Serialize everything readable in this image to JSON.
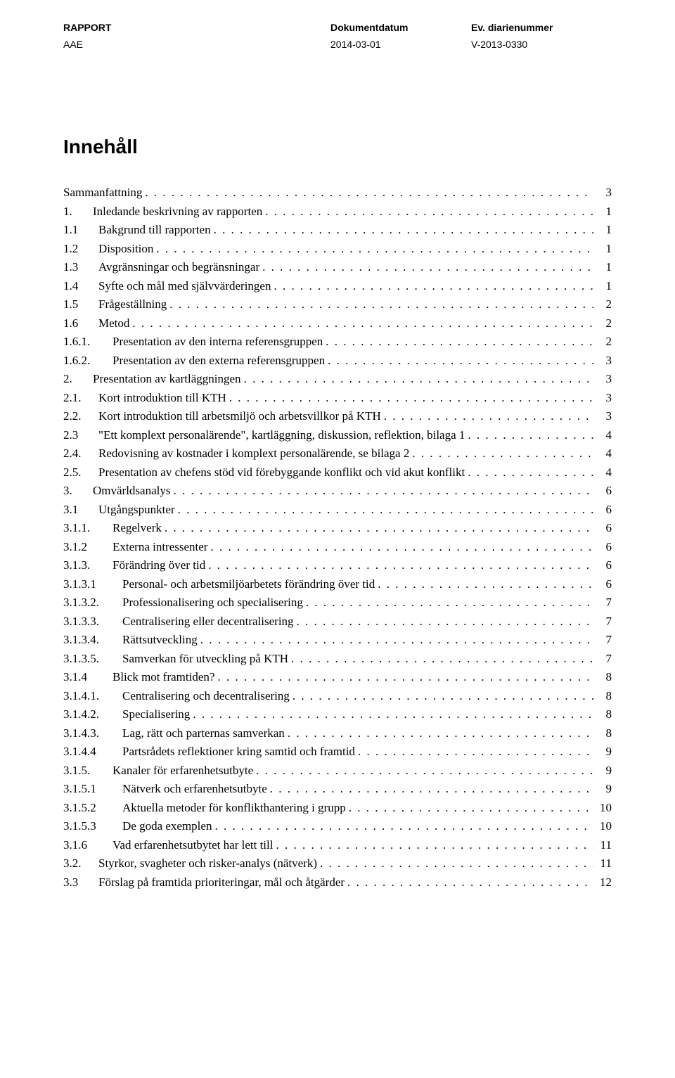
{
  "header": {
    "row1": {
      "col1": "RAPPORT",
      "col2": "Dokumentdatum",
      "col3": "Ev. diarienummer"
    },
    "row2": {
      "col1": "AAE",
      "col2": "2014-03-01",
      "col3": "V-2013-0330"
    }
  },
  "title": "Innehåll",
  "toc": [
    {
      "level": 0,
      "num": "",
      "label": "Sammanfattning",
      "page": "3"
    },
    {
      "level": 0,
      "num": "1.",
      "label": "Inledande beskrivning av rapporten",
      "page": "1"
    },
    {
      "level": 1,
      "num": "1.1",
      "label": "Bakgrund till rapporten",
      "page": "1"
    },
    {
      "level": 1,
      "num": "1.2",
      "label": "Disposition",
      "page": "1"
    },
    {
      "level": 1,
      "num": "1.3",
      "label": "Avgränsningar och begränsningar",
      "page": "1"
    },
    {
      "level": 1,
      "num": "1.4",
      "label": "Syfte och mål med självvärderingen",
      "page": "1"
    },
    {
      "level": 1,
      "num": "1.5",
      "label": "Frågeställning",
      "page": "2"
    },
    {
      "level": 1,
      "num": "1.6",
      "label": "Metod",
      "page": "2"
    },
    {
      "level": 2,
      "num": "1.6.1.",
      "label": "Presentation av den interna referensgruppen",
      "page": "2"
    },
    {
      "level": 2,
      "num": "1.6.2.",
      "label": "Presentation av den externa referensgruppen",
      "page": "3"
    },
    {
      "level": 0,
      "num": "2.",
      "label": "Presentation av kartläggningen",
      "page": "3"
    },
    {
      "level": 1,
      "num": "2.1.",
      "label": "Kort introduktion till KTH",
      "page": "3"
    },
    {
      "level": 1,
      "num": "2.2.",
      "label": "Kort introduktion till arbetsmiljö och arbetsvillkor på KTH",
      "page": "3"
    },
    {
      "level": 1,
      "num": "2.3",
      "label": "\"Ett komplext personalärende\", kartläggning, diskussion, reflektion, bilaga 1",
      "page": "4"
    },
    {
      "level": 1,
      "num": "2.4.",
      "label": "Redovisning av kostnader i komplext personalärende, se bilaga 2",
      "page": "4"
    },
    {
      "level": 1,
      "num": "2.5.",
      "label": "Presentation av chefens stöd vid förebyggande konflikt och vid akut konflikt",
      "page": "4"
    },
    {
      "level": 0,
      "num": "3.",
      "label": "Omvärldsanalys",
      "page": "6"
    },
    {
      "level": 1,
      "num": "3.1",
      "label": "Utgångspunkter",
      "page": "6"
    },
    {
      "level": 2,
      "num": "3.1.1.",
      "label": "Regelverk",
      "page": "6"
    },
    {
      "level": 2,
      "num": "3.1.2",
      "label": "Externa intressenter",
      "page": "6"
    },
    {
      "level": 2,
      "num": "3.1.3.",
      "label": "Förändring över tid",
      "page": "6"
    },
    {
      "level": 3,
      "num": "3.1.3.1",
      "label": "Personal- och arbetsmiljöarbetets förändring över tid",
      "page": "6"
    },
    {
      "level": 3,
      "num": "3.1.3.2.",
      "label": "Professionalisering och specialisering",
      "page": "7"
    },
    {
      "level": 3,
      "num": "3.1.3.3.",
      "label": "Centralisering eller decentralisering",
      "page": "7"
    },
    {
      "level": 3,
      "num": "3.1.3.4.",
      "label": "Rättsutveckling",
      "page": "7"
    },
    {
      "level": 3,
      "num": "3.1.3.5.",
      "label": "Samverkan för utveckling på KTH",
      "page": "7"
    },
    {
      "level": 2,
      "num": "3.1.4",
      "label": "Blick mot framtiden?",
      "page": "8"
    },
    {
      "level": 3,
      "num": "3.1.4.1.",
      "label": "Centralisering och decentralisering",
      "page": "8"
    },
    {
      "level": 3,
      "num": "3.1.4.2.",
      "label": "Specialisering",
      "page": "8"
    },
    {
      "level": 3,
      "num": "3.1.4.3.",
      "label": "Lag, rätt och parternas samverkan",
      "page": "8"
    },
    {
      "level": 3,
      "num": "3.1.4.4",
      "label": "Partsrådets reflektioner kring samtid och framtid",
      "page": "9"
    },
    {
      "level": 2,
      "num": "3.1.5.",
      "label": "Kanaler för erfarenhetsutbyte",
      "page": "9"
    },
    {
      "level": 3,
      "num": "3.1.5.1",
      "label": "Nätverk och erfarenhetsutbyte",
      "page": "9"
    },
    {
      "level": 3,
      "num": "3.1.5.2",
      "label": "Aktuella metoder för konflikthantering i grupp",
      "page": "10"
    },
    {
      "level": 3,
      "num": "3.1.5.3",
      "label": "De goda exemplen",
      "page": "10"
    },
    {
      "level": 2,
      "num": "3.1.6",
      "label": "Vad erfarenhetsutbytet har lett till",
      "page": "11"
    },
    {
      "level": 1,
      "num": "3.2.",
      "label": "Styrkor, svagheter och risker-analys (nätverk)",
      "page": "11"
    },
    {
      "level": 1,
      "num": "3.3",
      "label": "Förslag på framtida prioriteringar, mål och åtgärder",
      "page": "12"
    }
  ]
}
